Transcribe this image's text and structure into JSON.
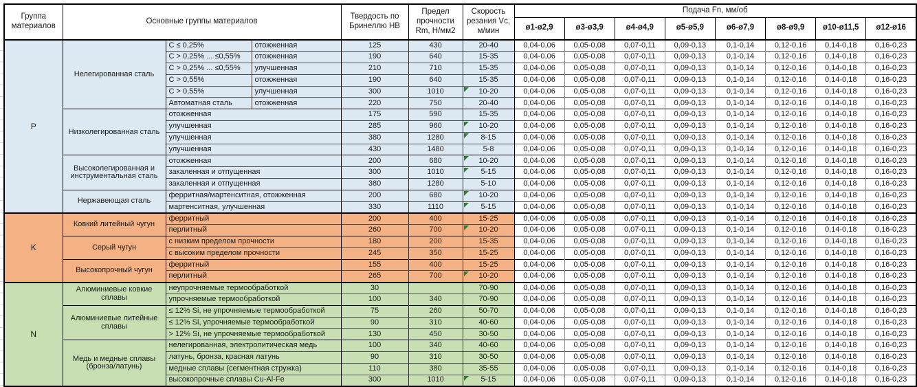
{
  "header": {
    "col_group": "Группа материалов",
    "col_main": "Основные группы материалов",
    "col_hb": "Твердость по Бринеллю HB",
    "col_rm": "Предел прочности Rm, Н/мм2",
    "col_vc": "Скорость резания Vc, м/мин",
    "feed_title": "Подача Fn, мм/об",
    "feed_cols": [
      "ø1-ø2,9",
      "ø3-ø3,9",
      "ø4-ø4,9",
      "ø5-ø5,9",
      "ø6-ø7,9",
      "ø8-ø9,9",
      "ø10-ø11,5",
      "ø12-ø16"
    ]
  },
  "feed_values": [
    "0,04-0,06",
    "0,05-0,08",
    "0,07-0,11",
    "0,09-0,13",
    "0,1-0,14",
    "0,12-0,16",
    "0,14-0,18",
    "0,16-0,23"
  ],
  "colors": {
    "group_p": "#dce9f3",
    "group_k": "#f4b183",
    "group_n": "#c7dfb2",
    "flag": "#2e7d32",
    "feed_cell": "#fdfdfd"
  },
  "groups": [
    {
      "letter": "P",
      "color": "#dce9f3",
      "subgroups": [
        {
          "name": "Нелегированная сталь",
          "split": true,
          "rows": [
            {
              "cond1": "C ≤ 0,25%",
              "cond2": "отожженная",
              "hb": "125",
              "rm": "430",
              "vc": "20-40",
              "flag": false
            },
            {
              "cond1": "C > 0,25% ... ≤0,55%",
              "cond2": "отожженная",
              "hb": "190",
              "rm": "640",
              "vc": "15-35",
              "flag": false
            },
            {
              "cond1": "C > 0,25% ... ≤0,55%",
              "cond2": "улучшенная",
              "hb": "210",
              "rm": "710",
              "vc": "15-35",
              "flag": false
            },
            {
              "cond1": "C > 0,55%",
              "cond2": "отожженная",
              "hb": "190",
              "rm": "640",
              "vc": "15-35",
              "flag": false
            },
            {
              "cond1": "C > 0,55%",
              "cond2": "улучшенная",
              "hb": "300",
              "rm": "1010",
              "vc": "10-20",
              "flag": true
            },
            {
              "cond1": "Автоматная сталь",
              "cond2": "отожженная",
              "hb": "220",
              "rm": "750",
              "vc": "20-40",
              "flag": false
            }
          ]
        },
        {
          "name": "Низколегированная сталь",
          "split": false,
          "rows": [
            {
              "cond": "отожженная",
              "hb": "175",
              "rm": "590",
              "vc": "15-35",
              "flag": false
            },
            {
              "cond": "улучшенная",
              "hb": "285",
              "rm": "960",
              "vc": "10-20",
              "flag": true
            },
            {
              "cond": "улучшенная",
              "hb": "380",
              "rm": "1280",
              "vc": "8-15",
              "flag": true
            },
            {
              "cond": "улучшенная",
              "hb": "430",
              "rm": "1480",
              "vc": "5-8",
              "flag": false
            }
          ]
        },
        {
          "name": "Высоколегированная и инструментальная сталь",
          "split": false,
          "rows": [
            {
              "cond": "отожженная",
              "hb": "200",
              "rm": "680",
              "vc": "10-20",
              "flag": true
            },
            {
              "cond": "закаленная и отпущенная",
              "hb": "300",
              "rm": "1010",
              "vc": "5-15",
              "flag": true
            },
            {
              "cond": "закаленная и отпущенная",
              "hb": "380",
              "rm": "1280",
              "vc": "5-10",
              "flag": false
            }
          ]
        },
        {
          "name": "Нержавеющая сталь",
          "split": false,
          "rows": [
            {
              "cond": "ферритная/мартенситная, отожженная",
              "hb": "200",
              "rm": "680",
              "vc": "10-20",
              "flag": true
            },
            {
              "cond": "мартенситная, улучшенная",
              "hb": "330",
              "rm": "1110",
              "vc": "5-15",
              "flag": true
            }
          ]
        }
      ]
    },
    {
      "letter": "K",
      "color": "#f4b183",
      "subgroups": [
        {
          "name": "Ковкий литейный чугун",
          "split": false,
          "rows": [
            {
              "cond": "ферритный",
              "hb": "200",
              "rm": "400",
              "vc": "15-25",
              "flag": false
            },
            {
              "cond": "перлитный",
              "hb": "260",
              "rm": "700",
              "vc": "10-20",
              "flag": true
            }
          ]
        },
        {
          "name": "Серый чугун",
          "split": false,
          "rows": [
            {
              "cond": "с низким пределом прочности",
              "hb": "180",
              "rm": "200",
              "vc": "15-35",
              "flag": false
            },
            {
              "cond": "с высоким пределом прочности",
              "hb": "245",
              "rm": "350",
              "vc": "15-25",
              "flag": false
            }
          ]
        },
        {
          "name": "Высокопрочный чугун",
          "split": false,
          "rows": [
            {
              "cond": "ферритный",
              "hb": "155",
              "rm": "400",
              "vc": "15-25",
              "flag": false
            },
            {
              "cond": "перлитный",
              "hb": "265",
              "rm": "700",
              "vc": "10-20",
              "flag": true
            }
          ]
        }
      ]
    },
    {
      "letter": "N",
      "color": "#c7dfb2",
      "subgroups": [
        {
          "name": "Алюминиевые ковкие сплавы",
          "split": false,
          "rows": [
            {
              "cond": "неупрочняемые термообработкой",
              "hb": "30",
              "rm": "",
              "vc": "70-90",
              "flag": false
            },
            {
              "cond": "упрочняемые термообработкой",
              "hb": "100",
              "rm": "340",
              "vc": "70-90",
              "flag": false
            }
          ]
        },
        {
          "name": "Алюминиевые литейные сплавы",
          "split": false,
          "rows": [
            {
              "cond": "≤ 12% Si, не упрочняемые термообработкой",
              "hb": "75",
              "rm": "260",
              "vc": "50-70",
              "flag": false
            },
            {
              "cond": "≤ 12% Si, упрочняемые термообработкой",
              "hb": "90",
              "rm": "310",
              "vc": "40-60",
              "flag": false
            },
            {
              "cond": "> 12% Si, не упрочняемые термообработкой",
              "hb": "130",
              "rm": "450",
              "vc": "30-50",
              "flag": false
            }
          ]
        },
        {
          "name": "Медь и медные сплавы (бронза/латунь)",
          "split": false,
          "rows": [
            {
              "cond": "нелегированная, электролитическая медь",
              "hb": "100",
              "rm": "340",
              "vc": "40-60",
              "flag": false
            },
            {
              "cond": "латунь, бронза, красная латунь",
              "hb": "90",
              "rm": "310",
              "vc": "30-50",
              "flag": false
            },
            {
              "cond": "медные сплавы (сегментная стружка)",
              "hb": "110",
              "rm": "380",
              "vc": "35-55",
              "flag": false
            },
            {
              "cond": "высокопрочные сплавы Cu-Al-Fe",
              "hb": "300",
              "rm": "1010",
              "vc": "5-15",
              "flag": true
            }
          ]
        }
      ]
    }
  ]
}
